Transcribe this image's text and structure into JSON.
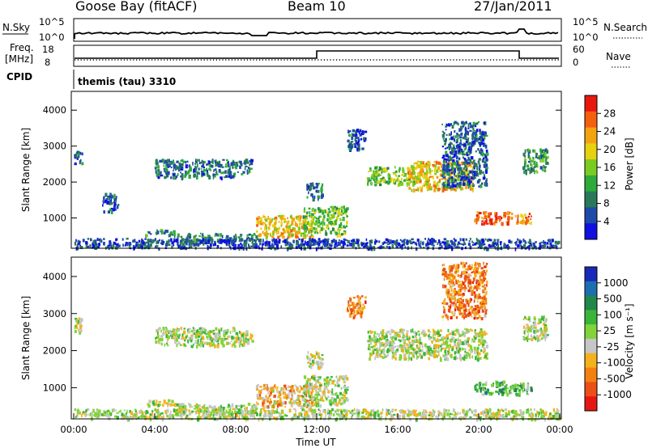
{
  "header": {
    "station": "Goose Bay (fitACF)",
    "beam": "Beam 10",
    "date": "27/Jan/2011"
  },
  "strip": {
    "nsky_label": "N.Sky",
    "nsky_ticks": [
      "10^5",
      "10^0"
    ],
    "nsearch_label": "N.Search",
    "nsearch_ticks": [
      "10^5",
      "10^0"
    ],
    "freq_label_1": "Freq.",
    "freq_label_2": "[MHz]",
    "freq_ticks": [
      "18",
      "8"
    ],
    "nave_label": "Nave",
    "nave_ticks": [
      "60",
      "0"
    ],
    "cpid_label": "CPID",
    "cpid_value": "themis (tau) 3310"
  },
  "colors": {
    "power": [
      "#1010e0",
      "#1e4aa8",
      "#2a7a5a",
      "#2eaa3a",
      "#7acc22",
      "#e6d20f",
      "#f3a210",
      "#f46010",
      "#e81810"
    ],
    "velocity": [
      "#1a2ab8",
      "#1c6fae",
      "#23864a",
      "#39b53a",
      "#82d43a",
      "#c6c6c6",
      "#f3b21b",
      "#f3810f",
      "#ec4f18",
      "#e51712"
    ]
  },
  "chart_data": [
    {
      "type": "heatmap",
      "name": "power",
      "xlabel": "",
      "ylabel": "Slant Range [km]",
      "xlim": [
        0,
        24
      ],
      "ylim": [
        180,
        4500
      ],
      "yticks": [
        "4000",
        "3000",
        "2000",
        "1000"
      ],
      "colorbar_label": "Power [dB]",
      "colorbar_ticks": [
        "28",
        "24",
        "20",
        "16",
        "12",
        "8",
        "4"
      ],
      "regions": [
        {
          "x": [
            0.0,
            0.4
          ],
          "y": [
            2500,
            2900
          ],
          "level": 0.2
        },
        {
          "x": [
            1.4,
            2.2
          ],
          "y": [
            1200,
            1700
          ],
          "level": 0.2
        },
        {
          "x": [
            4.0,
            8.8
          ],
          "y": [
            2150,
            2650
          ],
          "level": 0.25
        },
        {
          "x": [
            3.5,
            5.0
          ],
          "y": [
            550,
            700
          ],
          "level": 0.3
        },
        {
          "x": [
            5.0,
            9.0
          ],
          "y": [
            350,
            600
          ],
          "level": 0.3
        },
        {
          "x": [
            9.0,
            11.8
          ],
          "y": [
            500,
            1100
          ],
          "level": 0.65
        },
        {
          "x": [
            11.3,
            13.5
          ],
          "y": [
            550,
            1350
          ],
          "level": 0.45
        },
        {
          "x": [
            11.5,
            12.3
          ],
          "y": [
            1550,
            2000
          ],
          "level": 0.25
        },
        {
          "x": [
            13.5,
            14.4
          ],
          "y": [
            2900,
            3500
          ],
          "level": 0.2
        },
        {
          "x": [
            14.5,
            17.0
          ],
          "y": [
            1950,
            2450
          ],
          "level": 0.45
        },
        {
          "x": [
            16.5,
            19.8
          ],
          "y": [
            1800,
            2600
          ],
          "level": 0.65
        },
        {
          "x": [
            18.2,
            20.4
          ],
          "y": [
            1900,
            3700
          ],
          "level": 0.2
        },
        {
          "x": [
            19.8,
            21.6
          ],
          "y": [
            850,
            1200
          ],
          "level": 0.85
        },
        {
          "x": [
            21.6,
            22.6
          ],
          "y": [
            850,
            1150
          ],
          "level": 0.75
        },
        {
          "x": [
            22.2,
            23.4
          ],
          "y": [
            2300,
            2950
          ],
          "level": 0.35
        },
        {
          "x": [
            0.0,
            24.0
          ],
          "y": [
            180,
            450
          ],
          "level": 0.15
        }
      ]
    },
    {
      "type": "heatmap",
      "name": "velocity",
      "xlabel": "Time UT",
      "ylabel": "Slant Range [km]",
      "xlim": [
        0,
        24
      ],
      "ylim": [
        180,
        4500
      ],
      "xticks": [
        "00:00",
        "04:00",
        "08:00",
        "12:00",
        "16:00",
        "20:00",
        "00:00"
      ],
      "yticks": [
        "4000",
        "3000",
        "2000",
        "1000"
      ],
      "colorbar_label": "Velocity [m s⁻¹]",
      "colorbar_ticks": [
        "1000",
        "500",
        "100",
        "25",
        "-25",
        "-100",
        "-500",
        "-1000"
      ],
      "regions": [
        {
          "x": [
            0.0,
            0.4
          ],
          "y": [
            2500,
            2900
          ],
          "level": 0.5
        },
        {
          "x": [
            4.0,
            8.8
          ],
          "y": [
            2150,
            2650
          ],
          "level": 0.5
        },
        {
          "x": [
            3.5,
            5.0
          ],
          "y": [
            550,
            700
          ],
          "level": 0.5
        },
        {
          "x": [
            5.0,
            9.0
          ],
          "y": [
            300,
            600
          ],
          "level": 0.5
        },
        {
          "x": [
            9.0,
            11.8
          ],
          "y": [
            500,
            1100
          ],
          "level": 0.65
        },
        {
          "x": [
            11.3,
            13.5
          ],
          "y": [
            550,
            1350
          ],
          "level": 0.5
        },
        {
          "x": [
            11.5,
            12.3
          ],
          "y": [
            1550,
            2000
          ],
          "level": 0.5
        },
        {
          "x": [
            13.5,
            14.4
          ],
          "y": [
            2900,
            3500
          ],
          "level": 0.75
        },
        {
          "x": [
            14.5,
            20.4
          ],
          "y": [
            1800,
            2600
          ],
          "level": 0.5
        },
        {
          "x": [
            18.2,
            20.4
          ],
          "y": [
            2900,
            4400
          ],
          "level": 0.75
        },
        {
          "x": [
            19.8,
            21.6
          ],
          "y": [
            850,
            1200
          ],
          "level": 0.35
        },
        {
          "x": [
            21.6,
            22.6
          ],
          "y": [
            850,
            1150
          ],
          "level": 0.35
        },
        {
          "x": [
            22.2,
            23.4
          ],
          "y": [
            2300,
            2950
          ],
          "level": 0.5
        },
        {
          "x": [
            0.0,
            24.0
          ],
          "y": [
            180,
            450
          ],
          "level": 0.5
        }
      ]
    }
  ]
}
